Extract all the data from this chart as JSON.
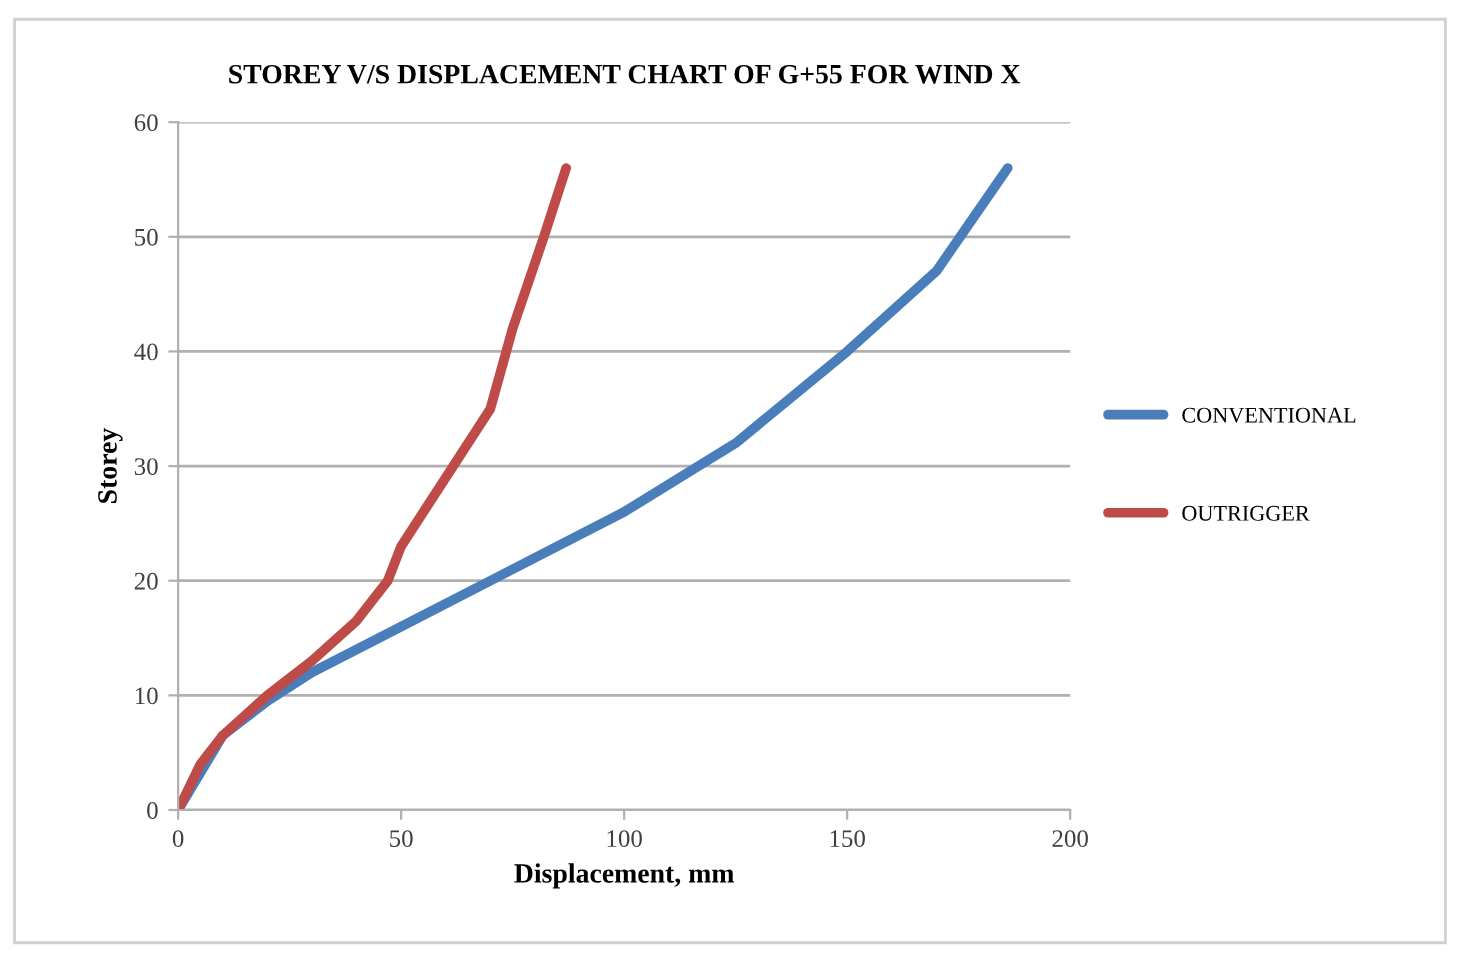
{
  "chart_data": {
    "type": "line",
    "title": "STOREY V/S DISPLACEMENT CHART OF G+55 FOR WIND X",
    "xlabel": "Displacement, mm",
    "ylabel": "Storey",
    "series": [
      {
        "name": "CONVENTIONAL",
        "color": "#4a7ebb",
        "x": [
          0,
          10,
          20,
          30,
          50,
          70,
          100,
          125,
          150,
          170,
          186
        ],
        "values": [
          0,
          6.5,
          9.5,
          12,
          16,
          20,
          26,
          32,
          40,
          47,
          56
        ]
      },
      {
        "name": "OUTRIGGER",
        "color": "#be4b48",
        "x": [
          0,
          5,
          10,
          20,
          30,
          40,
          47,
          50,
          60,
          70,
          75,
          82,
          87
        ],
        "values": [
          0,
          4,
          6.5,
          10,
          13,
          16.5,
          20,
          23,
          29,
          35,
          42,
          50,
          56
        ]
      }
    ],
    "xlim": [
      0,
      200
    ],
    "xticks": [
      0,
      50,
      100,
      150,
      200
    ],
    "ylim": [
      0,
      60
    ],
    "yticks": [
      0,
      10,
      20,
      30,
      40,
      50,
      60
    ],
    "grid": "y",
    "legend": "right",
    "marker": "none",
    "line_style": "solid"
  }
}
